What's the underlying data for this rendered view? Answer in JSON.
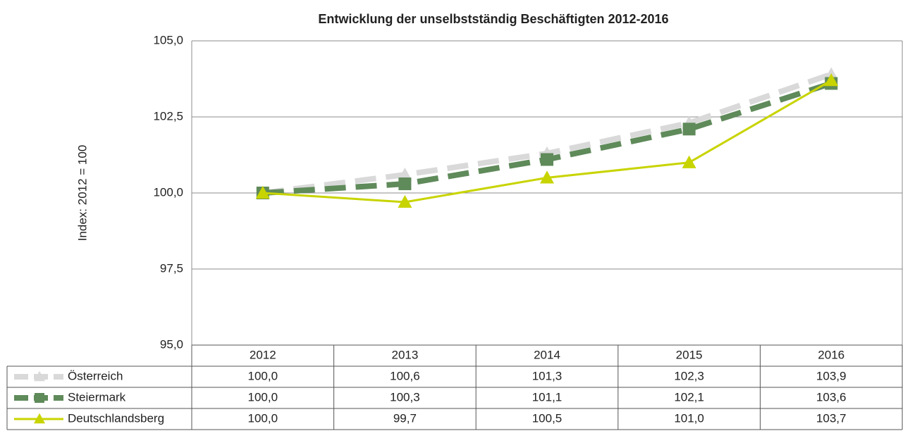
{
  "chart_data": {
    "type": "line",
    "title": "Entwicklung der unselbstständig Beschäftigten 2012-2016",
    "y_label": "Index: 2012 = 100",
    "categories": [
      "2012",
      "2013",
      "2014",
      "2015",
      "2016"
    ],
    "series": [
      {
        "name": "Österreich",
        "color": "#d9d9d9",
        "dash": true,
        "marker": "triangle",
        "values": [
          100.0,
          100.6,
          101.3,
          102.3,
          103.9
        ],
        "value_labels": [
          "100,0",
          "100,6",
          "101,3",
          "102,3",
          "103,9"
        ]
      },
      {
        "name": "Steiermark",
        "color": "#5f8a5a",
        "dash": true,
        "marker": "square",
        "values": [
          100.0,
          100.3,
          101.1,
          102.1,
          103.6
        ],
        "value_labels": [
          "100,0",
          "100,3",
          "101,1",
          "102,1",
          "103,6"
        ]
      },
      {
        "name": "Deutschlandsberg",
        "color": "#c8d400",
        "dash": false,
        "marker": "triangle",
        "values": [
          100.0,
          99.7,
          100.5,
          101.0,
          103.7
        ],
        "value_labels": [
          "100,0",
          "99,7",
          "100,5",
          "101,0",
          "103,7"
        ]
      }
    ],
    "ylim": [
      95,
      105
    ],
    "yticks": [
      {
        "value": 95,
        "label": "95,0"
      },
      {
        "value": 97.5,
        "label": "97,5"
      },
      {
        "value": 100,
        "label": "100,0"
      },
      {
        "value": 102.5,
        "label": "102,5"
      },
      {
        "value": 105,
        "label": "105,0"
      }
    ],
    "grid": true
  }
}
